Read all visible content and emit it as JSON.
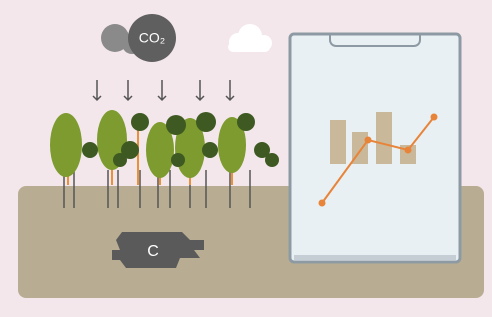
{
  "labels": {
    "co2": "CO₂",
    "carbon": "C"
  }
}
